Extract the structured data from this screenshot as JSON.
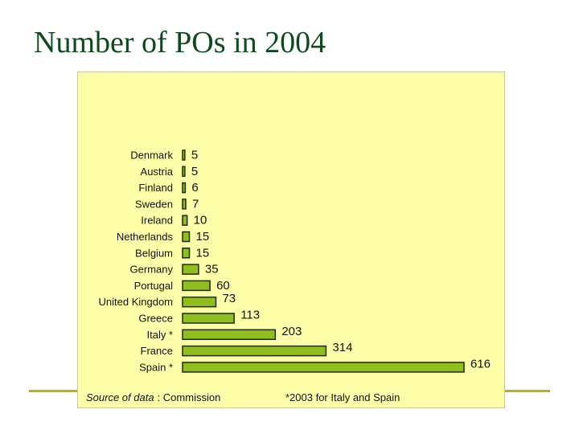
{
  "title": "Number of POs in 2004",
  "colors": {
    "title": "#0f4a1e",
    "panel_background": "#ffffaa",
    "bar_fill": "#8fbe1e",
    "bar_stroke": "#1f2a06",
    "rule": "#c4ad12"
  },
  "chart_data": {
    "type": "bar",
    "orientation": "horizontal",
    "categories": [
      "Denmark",
      "Austria",
      "Finland",
      "Sweden",
      "Ireland",
      "Netherlands",
      "Belgium",
      "Germany",
      "Portugal",
      "United Kingdom",
      "Greece",
      "Italy *",
      "France",
      "Spain *"
    ],
    "values": [
      5,
      5,
      6,
      7,
      10,
      15,
      15,
      35,
      60,
      73,
      113,
      203,
      314,
      616
    ],
    "data_labels": [
      "5",
      "5",
      "6",
      "7",
      "10",
      "15",
      "15",
      "35",
      "60",
      "73",
      "113",
      "203",
      "314",
      "616"
    ],
    "title": "",
    "xlabel": "",
    "ylabel": "",
    "xlim": [
      0,
      616
    ],
    "grid": false
  },
  "footer": {
    "source_label": "Source of data",
    "source_value": ": Commission",
    "note": "*2003 for Italy and Spain"
  }
}
